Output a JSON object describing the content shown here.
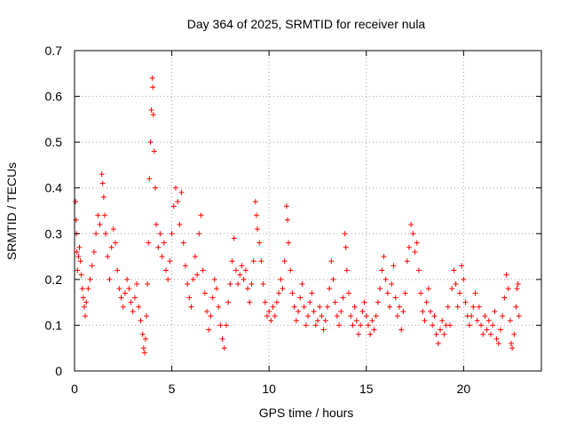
{
  "chart_data": {
    "type": "scatter",
    "title": "Day 364 of 2025, SRMTID for receiver nula",
    "xlabel": "GPS time / hours",
    "ylabel": "SRMTID / TECUs",
    "xlim": [
      0,
      24
    ],
    "ylim": [
      0,
      0.7
    ],
    "x_ticks": [
      0,
      5,
      10,
      15,
      20
    ],
    "y_ticks": [
      0,
      0.1,
      0.2,
      0.3,
      0.4,
      0.5,
      0.6,
      0.7
    ],
    "x_tick_labels": [
      "0",
      "5",
      "10",
      "15",
      "20"
    ],
    "y_tick_labels": [
      "0",
      "0.1",
      "0.2",
      "0.3",
      "0.4",
      "0.5",
      "0.6",
      "0.7"
    ],
    "grid": true,
    "marker": "+",
    "color": "#ff0000",
    "series": [
      {
        "name": "SRMTID",
        "points": [
          [
            0.05,
            0.37
          ],
          [
            0.08,
            0.33
          ],
          [
            0.1,
            0.3
          ],
          [
            0.12,
            0.26
          ],
          [
            0.15,
            0.22
          ],
          [
            0.2,
            0.25
          ],
          [
            0.25,
            0.27
          ],
          [
            0.3,
            0.24
          ],
          [
            0.35,
            0.21
          ],
          [
            0.4,
            0.18
          ],
          [
            0.45,
            0.16
          ],
          [
            0.5,
            0.14
          ],
          [
            0.55,
            0.12
          ],
          [
            0.6,
            0.15
          ],
          [
            0.7,
            0.18
          ],
          [
            0.8,
            0.2
          ],
          [
            0.9,
            0.23
          ],
          [
            1.0,
            0.26
          ],
          [
            1.1,
            0.3
          ],
          [
            1.2,
            0.34
          ],
          [
            1.3,
            0.32
          ],
          [
            1.4,
            0.43
          ],
          [
            1.45,
            0.41
          ],
          [
            1.5,
            0.38
          ],
          [
            1.55,
            0.34
          ],
          [
            1.6,
            0.3
          ],
          [
            1.7,
            0.25
          ],
          [
            1.8,
            0.2
          ],
          [
            1.9,
            0.27
          ],
          [
            2.0,
            0.31
          ],
          [
            2.1,
            0.28
          ],
          [
            2.2,
            0.22
          ],
          [
            2.3,
            0.18
          ],
          [
            2.4,
            0.16
          ],
          [
            2.5,
            0.14
          ],
          [
            2.6,
            0.17
          ],
          [
            2.7,
            0.2
          ],
          [
            2.8,
            0.18
          ],
          [
            2.9,
            0.15
          ],
          [
            3.0,
            0.13
          ],
          [
            3.1,
            0.16
          ],
          [
            3.2,
            0.19
          ],
          [
            3.3,
            0.14
          ],
          [
            3.4,
            0.11
          ],
          [
            3.5,
            0.08
          ],
          [
            3.55,
            0.05
          ],
          [
            3.6,
            0.04
          ],
          [
            3.65,
            0.07
          ],
          [
            3.7,
            0.12
          ],
          [
            3.75,
            0.19
          ],
          [
            3.8,
            0.28
          ],
          [
            3.85,
            0.42
          ],
          [
            3.9,
            0.5
          ],
          [
            3.95,
            0.57
          ],
          [
            4.0,
            0.64
          ],
          [
            4.02,
            0.62
          ],
          [
            4.05,
            0.56
          ],
          [
            4.1,
            0.48
          ],
          [
            4.15,
            0.4
          ],
          [
            4.2,
            0.32
          ],
          [
            4.3,
            0.27
          ],
          [
            4.4,
            0.3
          ],
          [
            4.5,
            0.25
          ],
          [
            4.6,
            0.28
          ],
          [
            4.7,
            0.22
          ],
          [
            4.8,
            0.2
          ],
          [
            4.9,
            0.24
          ],
          [
            5.0,
            0.3
          ],
          [
            5.1,
            0.36
          ],
          [
            5.2,
            0.4
          ],
          [
            5.3,
            0.37
          ],
          [
            5.4,
            0.32
          ],
          [
            5.5,
            0.39
          ],
          [
            5.6,
            0.28
          ],
          [
            5.7,
            0.23
          ],
          [
            5.8,
            0.19
          ],
          [
            5.9,
            0.16
          ],
          [
            6.0,
            0.14
          ],
          [
            6.1,
            0.2
          ],
          [
            6.2,
            0.25
          ],
          [
            6.3,
            0.21
          ],
          [
            6.4,
            0.3
          ],
          [
            6.5,
            0.34
          ],
          [
            6.6,
            0.22
          ],
          [
            6.7,
            0.17
          ],
          [
            6.8,
            0.13
          ],
          [
            6.9,
            0.09
          ],
          [
            7.0,
            0.12
          ],
          [
            7.1,
            0.16
          ],
          [
            7.2,
            0.2
          ],
          [
            7.3,
            0.18
          ],
          [
            7.4,
            0.14
          ],
          [
            7.5,
            0.1
          ],
          [
            7.6,
            0.07
          ],
          [
            7.7,
            0.05
          ],
          [
            7.8,
            0.1
          ],
          [
            7.9,
            0.15
          ],
          [
            8.0,
            0.19
          ],
          [
            8.1,
            0.24
          ],
          [
            8.2,
            0.29
          ],
          [
            8.3,
            0.22
          ],
          [
            8.4,
            0.19
          ],
          [
            8.5,
            0.21
          ],
          [
            8.6,
            0.23
          ],
          [
            8.7,
            0.2
          ],
          [
            8.8,
            0.22
          ],
          [
            8.9,
            0.18
          ],
          [
            9.0,
            0.15
          ],
          [
            9.1,
            0.19
          ],
          [
            9.2,
            0.24
          ],
          [
            9.3,
            0.37
          ],
          [
            9.35,
            0.34
          ],
          [
            9.4,
            0.31
          ],
          [
            9.5,
            0.28
          ],
          [
            9.6,
            0.24
          ],
          [
            9.7,
            0.19
          ],
          [
            9.8,
            0.15
          ],
          [
            9.9,
            0.12
          ],
          [
            10.0,
            0.13
          ],
          [
            10.1,
            0.11
          ],
          [
            10.2,
            0.14
          ],
          [
            10.3,
            0.12
          ],
          [
            10.4,
            0.15
          ],
          [
            10.5,
            0.17
          ],
          [
            10.6,
            0.2
          ],
          [
            10.7,
            0.18
          ],
          [
            10.8,
            0.24
          ],
          [
            10.9,
            0.36
          ],
          [
            10.95,
            0.33
          ],
          [
            11.0,
            0.28
          ],
          [
            11.1,
            0.22
          ],
          [
            11.2,
            0.17
          ],
          [
            11.3,
            0.14
          ],
          [
            11.4,
            0.11
          ],
          [
            11.5,
            0.13
          ],
          [
            11.6,
            0.16
          ],
          [
            11.7,
            0.19
          ],
          [
            11.8,
            0.14
          ],
          [
            11.9,
            0.1
          ],
          [
            12.0,
            0.12
          ],
          [
            12.1,
            0.15
          ],
          [
            12.2,
            0.17
          ],
          [
            12.3,
            0.13
          ],
          [
            12.4,
            0.1
          ],
          [
            12.5,
            0.11
          ],
          [
            12.6,
            0.14
          ],
          [
            12.7,
            0.12
          ],
          [
            12.8,
            0.09
          ],
          [
            12.9,
            0.11
          ],
          [
            13.0,
            0.14
          ],
          [
            13.1,
            0.18
          ],
          [
            13.2,
            0.24
          ],
          [
            13.3,
            0.2
          ],
          [
            13.4,
            0.15
          ],
          [
            13.5,
            0.12
          ],
          [
            13.6,
            0.1
          ],
          [
            13.7,
            0.13
          ],
          [
            13.8,
            0.16
          ],
          [
            13.9,
            0.3
          ],
          [
            13.95,
            0.27
          ],
          [
            14.0,
            0.22
          ],
          [
            14.1,
            0.17
          ],
          [
            14.2,
            0.12
          ],
          [
            14.3,
            0.1
          ],
          [
            14.4,
            0.14
          ],
          [
            14.5,
            0.11
          ],
          [
            14.6,
            0.08
          ],
          [
            14.7,
            0.1
          ],
          [
            14.8,
            0.13
          ],
          [
            14.9,
            0.15
          ],
          [
            15.0,
            0.12
          ],
          [
            15.1,
            0.1
          ],
          [
            15.2,
            0.08
          ],
          [
            15.3,
            0.11
          ],
          [
            15.4,
            0.09
          ],
          [
            15.5,
            0.12
          ],
          [
            15.6,
            0.15
          ],
          [
            15.7,
            0.18
          ],
          [
            15.8,
            0.22
          ],
          [
            15.9,
            0.25
          ],
          [
            16.0,
            0.2
          ],
          [
            16.1,
            0.17
          ],
          [
            16.2,
            0.14
          ],
          [
            16.3,
            0.19
          ],
          [
            16.4,
            0.23
          ],
          [
            16.5,
            0.16
          ],
          [
            16.6,
            0.12
          ],
          [
            16.7,
            0.14
          ],
          [
            16.8,
            0.09
          ],
          [
            16.9,
            0.13
          ],
          [
            17.0,
            0.17
          ],
          [
            17.1,
            0.24
          ],
          [
            17.2,
            0.27
          ],
          [
            17.3,
            0.32
          ],
          [
            17.4,
            0.3
          ],
          [
            17.5,
            0.26
          ],
          [
            17.6,
            0.28
          ],
          [
            17.7,
            0.22
          ],
          [
            17.8,
            0.17
          ],
          [
            17.9,
            0.13
          ],
          [
            18.0,
            0.11
          ],
          [
            18.1,
            0.15
          ],
          [
            18.2,
            0.18
          ],
          [
            18.3,
            0.13
          ],
          [
            18.4,
            0.1
          ],
          [
            18.5,
            0.12
          ],
          [
            18.6,
            0.08
          ],
          [
            18.7,
            0.06
          ],
          [
            18.8,
            0.09
          ],
          [
            18.9,
            0.11
          ],
          [
            19.0,
            0.08
          ],
          [
            19.1,
            0.1
          ],
          [
            19.2,
            0.14
          ],
          [
            19.3,
            0.1
          ],
          [
            19.4,
            0.18
          ],
          [
            19.5,
            0.22
          ],
          [
            19.6,
            0.19
          ],
          [
            19.7,
            0.14
          ],
          [
            19.8,
            0.17
          ],
          [
            19.9,
            0.23
          ],
          [
            20.0,
            0.2
          ],
          [
            20.1,
            0.15
          ],
          [
            20.2,
            0.12
          ],
          [
            20.3,
            0.1
          ],
          [
            20.4,
            0.12
          ],
          [
            20.5,
            0.14
          ],
          [
            20.6,
            0.17
          ],
          [
            20.7,
            0.11
          ],
          [
            20.8,
            0.14
          ],
          [
            20.9,
            0.1
          ],
          [
            21.0,
            0.08
          ],
          [
            21.1,
            0.12
          ],
          [
            21.2,
            0.09
          ],
          [
            21.3,
            0.11
          ],
          [
            21.4,
            0.08
          ],
          [
            21.5,
            0.1
          ],
          [
            21.6,
            0.13
          ],
          [
            21.7,
            0.07
          ],
          [
            21.8,
            0.06
          ],
          [
            21.9,
            0.09
          ],
          [
            22.0,
            0.12
          ],
          [
            22.1,
            0.16
          ],
          [
            22.2,
            0.21
          ],
          [
            22.3,
            0.18
          ],
          [
            22.4,
            0.11
          ],
          [
            22.45,
            0.06
          ],
          [
            22.5,
            0.05
          ],
          [
            22.6,
            0.08
          ],
          [
            22.7,
            0.14
          ],
          [
            22.75,
            0.18
          ],
          [
            22.8,
            0.19
          ],
          [
            22.85,
            0.12
          ]
        ]
      }
    ]
  }
}
